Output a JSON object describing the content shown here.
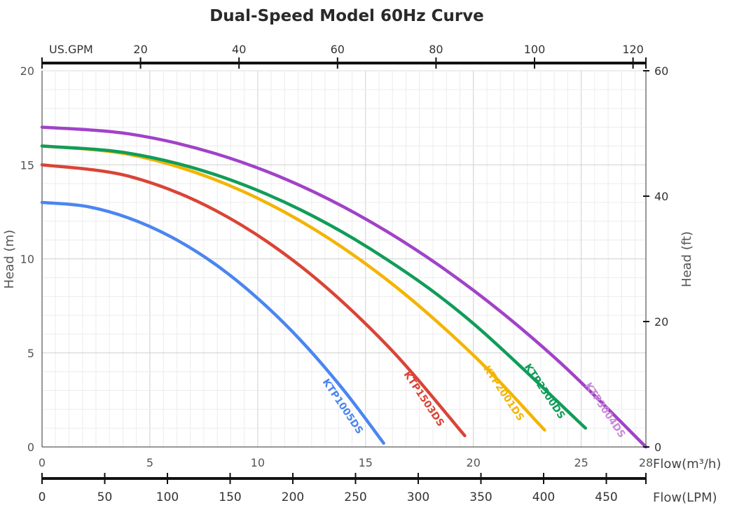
{
  "chart_data": {
    "type": "line",
    "title": "Dual-Speed Model 60Hz Curve",
    "xlabel": "Flow(m³/h)",
    "ylabel": "Head (m)",
    "y2label": "Head (ft)",
    "x_top_label": "US.GPM",
    "x_bottom2_label": "Flow(LPM)",
    "xlim": [
      0,
      28
    ],
    "ylim": [
      0,
      20
    ],
    "y2lim": [
      0,
      60
    ],
    "x_ticks": [
      "0",
      "5",
      "10",
      "15",
      "20",
      "25",
      "28"
    ],
    "y_ticks": [
      "0",
      "5",
      "10",
      "15",
      "20"
    ],
    "y2_ticks": [
      "0",
      "20",
      "40",
      "60"
    ],
    "gpm_ticks": [
      "20",
      "40",
      "60",
      "80",
      "100",
      "120"
    ],
    "lpm_ticks": [
      "0",
      "50",
      "100",
      "150",
      "200",
      "250",
      "300",
      "350",
      "400",
      "450"
    ],
    "grid": true,
    "series": [
      {
        "name": "KTP1005DS",
        "color": "#4a86f0",
        "label_color": "#4a86f0",
        "x": [
          0,
          2,
          4,
          6,
          8,
          10,
          12,
          14,
          15.84
        ],
        "y": [
          13,
          12.8,
          12.18,
          11.16,
          9.74,
          7.9,
          5.66,
          3.0,
          0.2
        ]
      },
      {
        "name": "KTP1503DS",
        "color": "#da4436",
        "label_color": "#da4436",
        "x": [
          0,
          4,
          8,
          12,
          16,
          19.6
        ],
        "y": [
          15,
          14.4,
          12.6,
          9.6,
          5.4,
          0.6
        ]
      },
      {
        "name": "KTP2001DS",
        "color": "#f4b400",
        "label_color": "#f4b400",
        "x": [
          0,
          4,
          8,
          12,
          16,
          20,
          23.3
        ],
        "y": [
          16,
          15.56,
          14.22,
          12.0,
          8.88,
          4.88,
          0.9
        ]
      },
      {
        "name": "KTP2500DS",
        "color": "#109d59",
        "label_color": "#109d59",
        "x": [
          0,
          4,
          8,
          12,
          16,
          20,
          25.2
        ],
        "y": [
          16,
          15.62,
          14.49,
          12.6,
          9.96,
          6.56,
          1.0
        ]
      },
      {
        "name": "KTP3004DS",
        "color": "#a142c8",
        "label_color": "#c98ad8",
        "x": [
          0,
          4,
          8,
          12,
          16,
          20,
          24,
          28
        ],
        "y": [
          17,
          16.65,
          15.61,
          13.88,
          11.45,
          8.33,
          4.51,
          0
        ]
      }
    ]
  }
}
